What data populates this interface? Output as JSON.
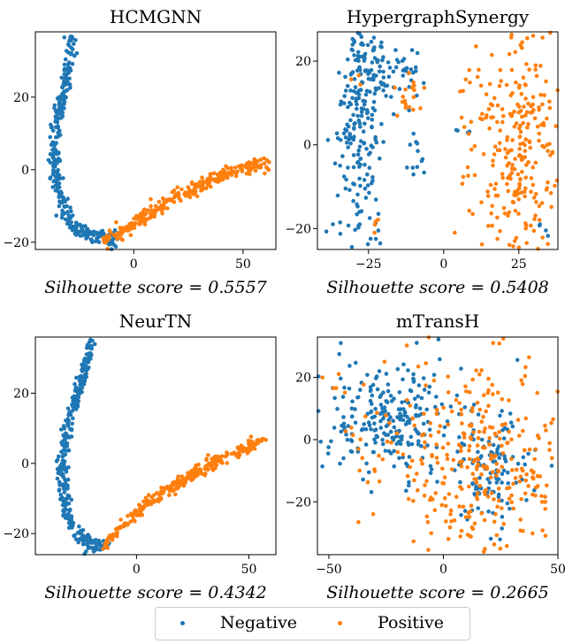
{
  "colors": {
    "negative": "#1f77b4",
    "positive": "#ff7f0e"
  },
  "legend": {
    "negative_label": "Negative",
    "positive_label": "Positive"
  },
  "chart_data": [
    {
      "type": "scatter",
      "title": "HCMGNN",
      "subtitle": "Silhouette score = 0.5557",
      "xlim": [
        -45,
        65
      ],
      "ylim": [
        -22,
        38
      ],
      "xticks": [
        0,
        50
      ],
      "yticks": [
        -20,
        0,
        20
      ],
      "series": [
        {
          "name": "Negative",
          "shape": "curve",
          "points": [
            [
              -28,
              37
            ],
            [
              -30,
              30
            ],
            [
              -32,
              22
            ],
            [
              -34,
              15
            ],
            [
              -36,
              8
            ],
            [
              -36,
              2
            ],
            [
              -35,
              -4
            ],
            [
              -33,
              -9
            ],
            [
              -31,
              -13
            ],
            [
              -27,
              -16
            ],
            [
              -22,
              -17.5
            ],
            [
              -17,
              -18.5
            ],
            [
              -12,
              -19
            ],
            [
              -8,
              -18.8
            ]
          ],
          "count": 330,
          "spread": 1.2
        },
        {
          "name": "Positive",
          "shape": "curve",
          "points": [
            [
              -14,
              -19
            ],
            [
              -5,
              -17
            ],
            [
              5,
              -13
            ],
            [
              15,
              -9
            ],
            [
              25,
              -6
            ],
            [
              35,
              -3
            ],
            [
              45,
              -0.5
            ],
            [
              55,
              1
            ],
            [
              62,
              1
            ]
          ],
          "count": 300,
          "spread": 1.0
        }
      ]
    },
    {
      "type": "scatter",
      "title": "HypergraphSynergy",
      "subtitle": "Silhouette score = 0.5408",
      "xlim": [
        -42,
        38
      ],
      "ylim": [
        -25,
        27
      ],
      "xticks": [
        -25,
        0,
        25
      ],
      "yticks": [
        -20,
        0,
        20
      ],
      "series": [
        {
          "name": "Negative",
          "shape": "clusters",
          "clusters": [
            [
              -28,
              5,
              4,
              19,
              260
            ],
            [
              -17,
              18,
              5,
              4,
              55
            ],
            [
              -9,
              -1,
              1.5,
              4,
              12
            ],
            [
              6,
              3,
              2,
              1,
              4
            ],
            [
              33,
              -20,
              1,
              1,
              4
            ],
            [
              -39,
              -20,
              0.5,
              0.5,
              1
            ]
          ]
        },
        {
          "name": "Positive",
          "shape": "clusters",
          "clusters": [
            [
              25,
              -2,
              8,
              17,
              310
            ],
            [
              -11,
              13,
              3,
              3,
              18
            ],
            [
              -29,
              15,
              1,
              1,
              3
            ],
            [
              -22,
              -20,
              1,
              2,
              4
            ]
          ]
        }
      ]
    },
    {
      "type": "scatter",
      "title": "NeurTN",
      "subtitle": "Silhouette score = 0.4342",
      "xlim": [
        -45,
        62
      ],
      "ylim": [
        -26,
        36
      ],
      "xticks": [
        0,
        50
      ],
      "yticks": [
        -20,
        0,
        20
      ],
      "series": [
        {
          "name": "Negative",
          "shape": "curve",
          "points": [
            [
              -20,
              34
            ],
            [
              -23,
              27
            ],
            [
              -26,
              20
            ],
            [
              -30,
              13
            ],
            [
              -32,
              6
            ],
            [
              -33,
              0
            ],
            [
              -33,
              -5
            ],
            [
              -32,
              -11
            ],
            [
              -30,
              -16
            ],
            [
              -27,
              -20
            ],
            [
              -22,
              -22.5
            ],
            [
              -17,
              -23.5
            ],
            [
              -12,
              -23
            ]
          ],
          "count": 330,
          "spread": 1.1
        },
        {
          "name": "Positive",
          "shape": "curve",
          "points": [
            [
              -14,
              -23
            ],
            [
              -8,
              -19
            ],
            [
              0,
              -14
            ],
            [
              10,
              -9
            ],
            [
              20,
              -5
            ],
            [
              30,
              -1.5
            ],
            [
              40,
              2
            ],
            [
              48,
              4.5
            ],
            [
              57,
              6
            ]
          ],
          "count": 300,
          "spread": 0.9
        }
      ]
    },
    {
      "type": "scatter",
      "title": "mTransH",
      "subtitle": "Silhouette score = 0.2665",
      "xlim": [
        -55,
        50
      ],
      "ylim": [
        -37,
        33
      ],
      "xticks": [
        -50,
        0,
        50
      ],
      "yticks": [
        -20,
        0,
        20
      ],
      "series": [
        {
          "name": "Negative",
          "shape": "clusters",
          "clusters": [
            [
              -22,
              6,
              15,
              9,
              230
            ],
            [
              20,
              -10,
              9,
              9,
              110
            ],
            [
              -40,
              10,
              6,
              10,
              15
            ]
          ]
        },
        {
          "name": "Positive",
          "shape": "clusters",
          "clusters": [
            [
              18,
              -10,
              22,
              16,
              330
            ],
            [
              -30,
              10,
              18,
              14,
              40
            ]
          ]
        }
      ]
    }
  ]
}
